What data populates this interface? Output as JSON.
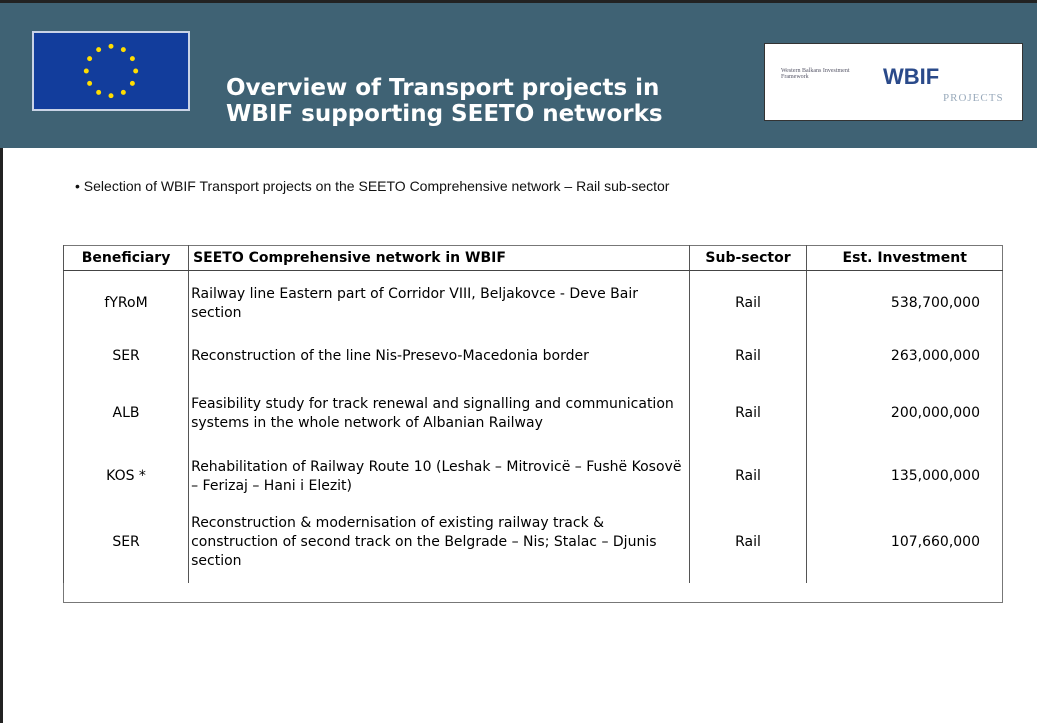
{
  "header": {
    "title": "Overview of Transport projects in WBIF supporting SEETO networks",
    "logo": {
      "small": "Western Balkans Investment Framework",
      "main": "WBIF",
      "sub": "PROJECTS"
    }
  },
  "bullet": "Selection of WBIF Transport projects on the SEETO Comprehensive network – Rail sub-sector",
  "table": {
    "columns": [
      "Beneficiary",
      "SEETO Comprehensive network in WBIF",
      "Sub-sector",
      "Est. Investment"
    ],
    "rows": [
      [
        "fYRoM",
        "Railway line Eastern part of Corridor VIII, Beljakovce - Deve Bair section",
        "Rail",
        "538,700,000"
      ],
      [
        "SER",
        "Reconstruction of the line Nis-Presevo-Macedonia border",
        "Rail",
        "263,000,000"
      ],
      [
        "ALB",
        "Feasibility study for track renewal and signalling and communication systems in the whole network of Albanian Railway",
        "Rail",
        "200,000,000"
      ],
      [
        "KOS *",
        "Rehabilitation of Railway Route 10 (Leshak – Mitrovicë – Fushë Kosovë – Ferizaj – Hani i Elezit)",
        "Rail",
        "135,000,000"
      ],
      [
        "SER",
        "Reconstruction & modernisation of existing railway track & construction of second track on the Belgrade – Nis; Stalac – Djunis section",
        "Rail",
        "107,660,000"
      ]
    ]
  }
}
